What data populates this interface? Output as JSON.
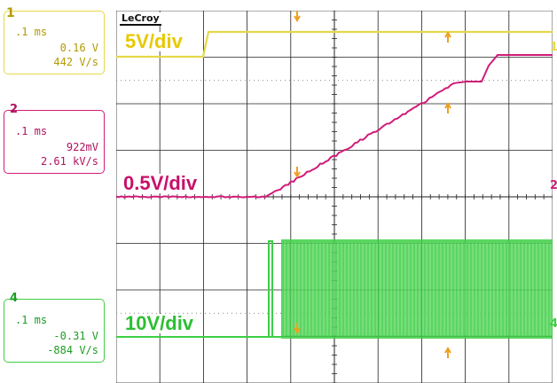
{
  "logo": "LeCroy",
  "channels": [
    {
      "id": "1",
      "label": "1",
      "timebase": ".1 ms",
      "value": "0.16 V",
      "slope": "442 V/s",
      "color": "#e6d84a",
      "text_color": "#b29a00",
      "scale": "5V/div"
    },
    {
      "id": "2",
      "label": "2",
      "timebase": ".1 ms",
      "value": "922mV",
      "slope": "2.61 kV/s",
      "color": "#d01c78",
      "text_color": "#b0125f",
      "scale": "0.5V/div"
    },
    {
      "id": "4",
      "label": "4",
      "timebase": ".1 ms",
      "value": "-0.31 V",
      "slope": "-884 V/s",
      "color": "#3ecf45",
      "text_color": "#1b9e22",
      "scale": "10V/div"
    }
  ],
  "grid_color": "#222222",
  "cursor_color": "#f0a020"
}
